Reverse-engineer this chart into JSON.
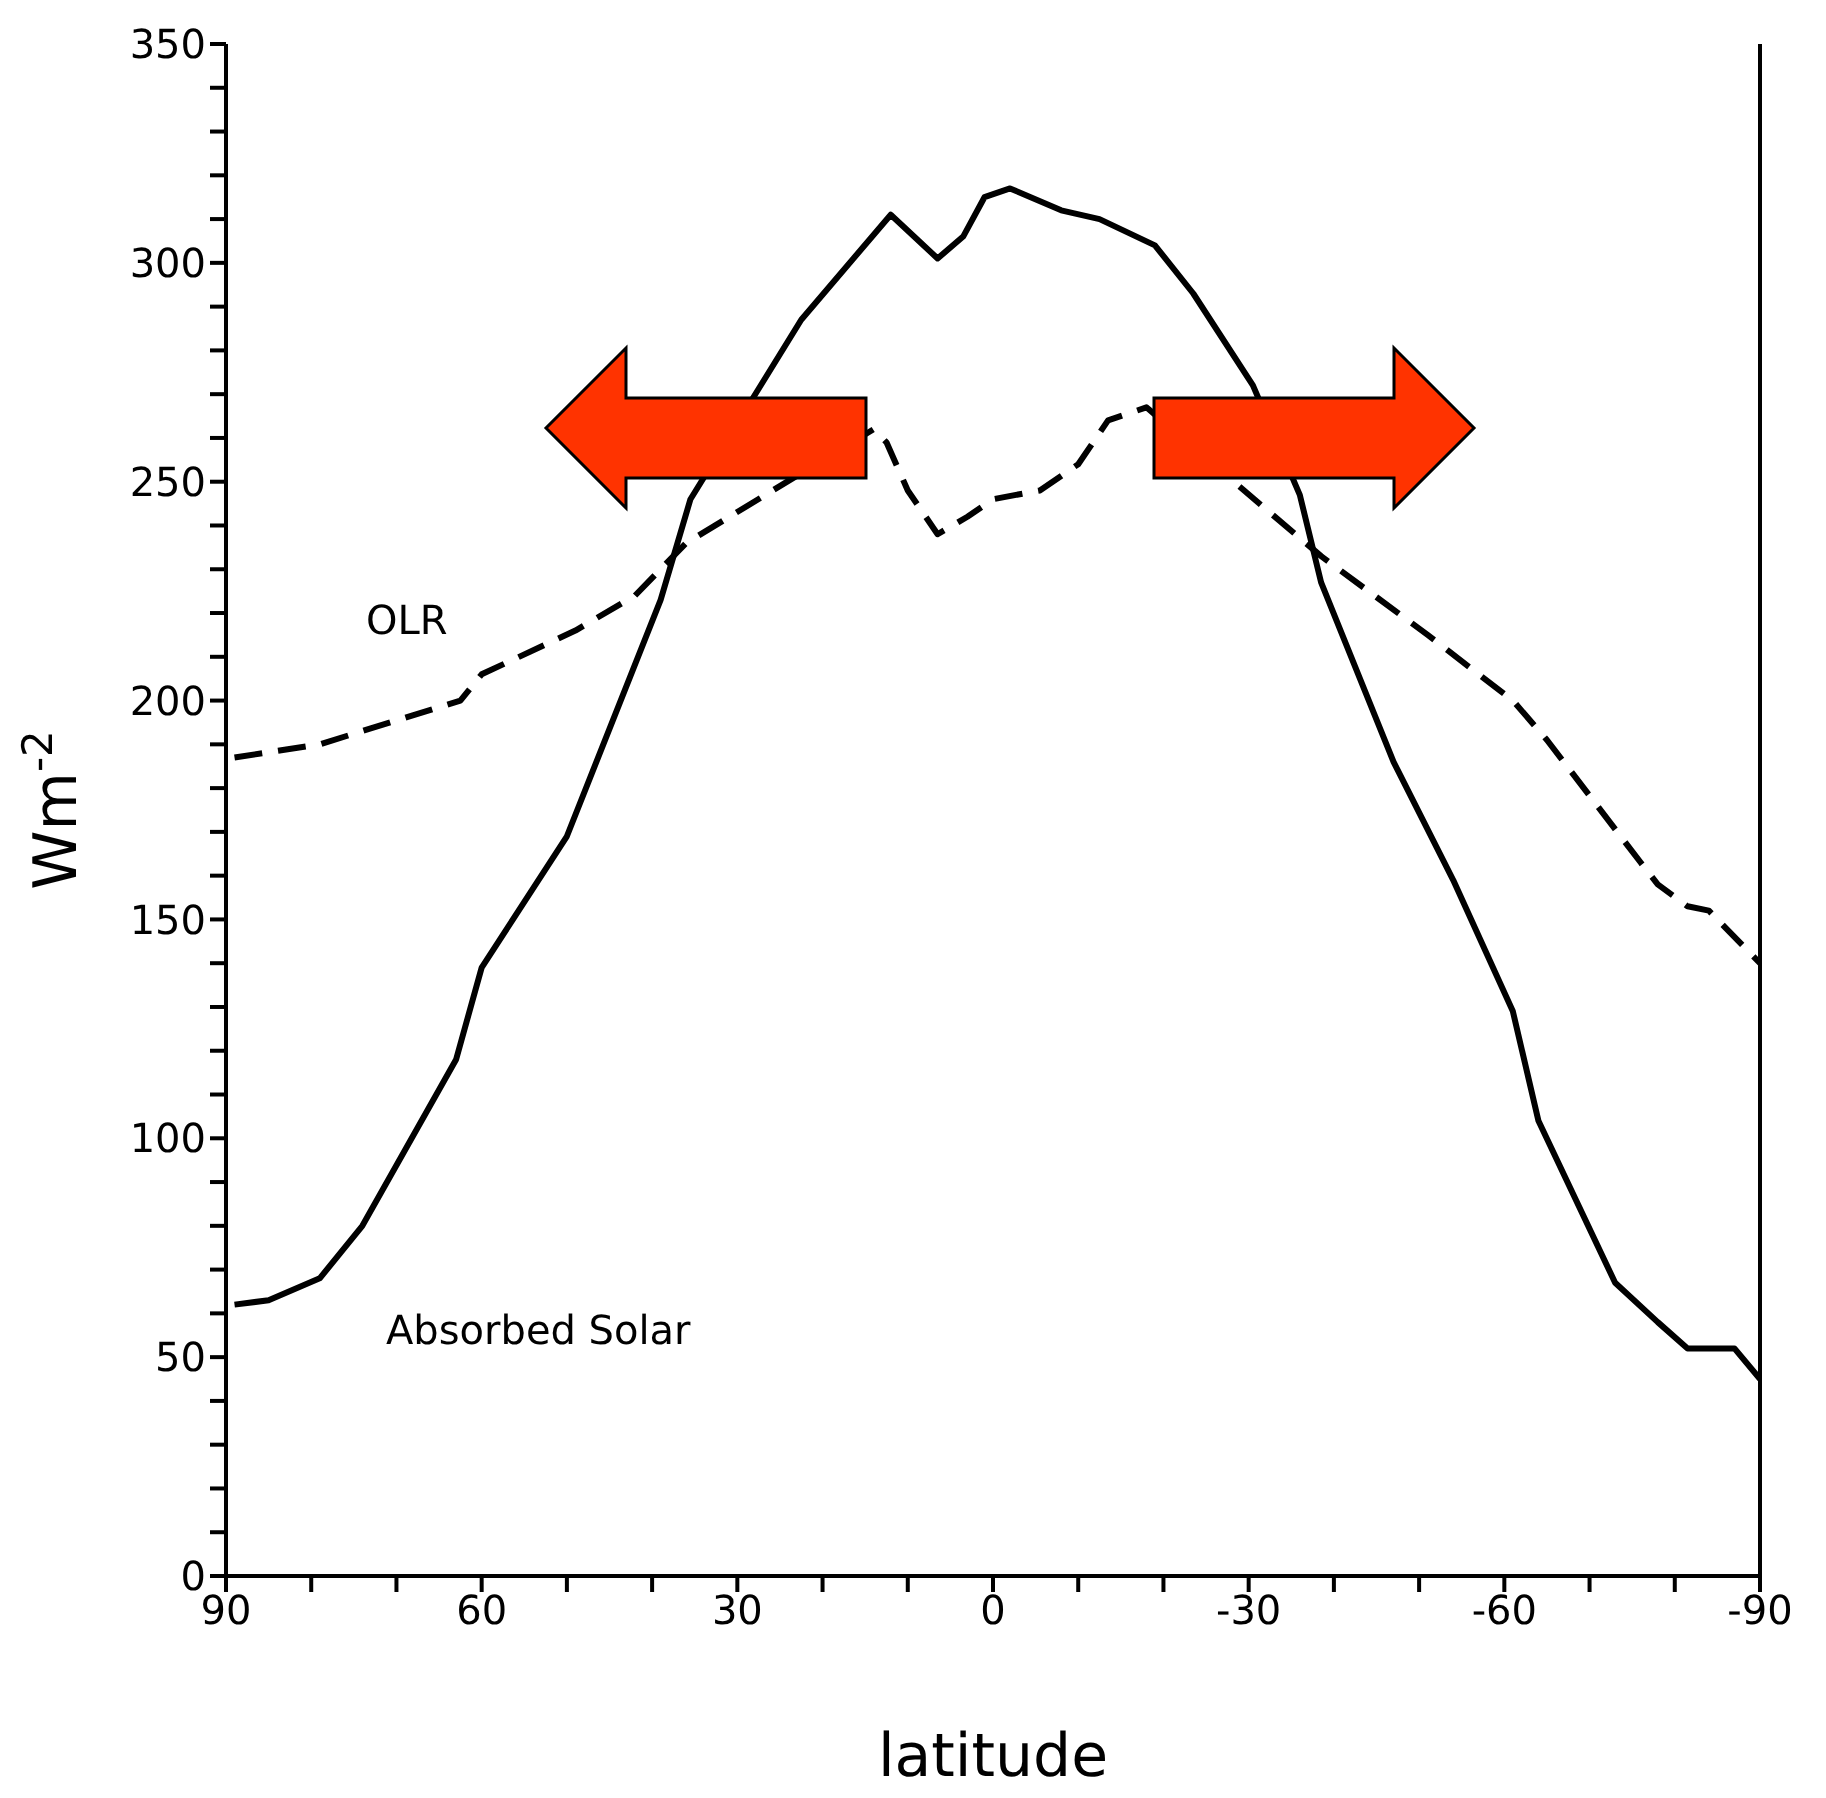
{
  "chart_data": {
    "type": "line",
    "xlabel": "latitude",
    "ylabel": "Wm$^{-2}$",
    "xlim": [
      90,
      -90
    ],
    "xticks": [
      90,
      {
        "value": 80,
        "label": null
      },
      {
        "value": 70,
        "label": null
      },
      60,
      {
        "value": 50,
        "label": null
      },
      {
        "value": 40,
        "label": null
      },
      30,
      {
        "value": 20,
        "label": null
      },
      {
        "value": 10,
        "label": null
      },
      0,
      {
        "value": -10,
        "label": null
      },
      {
        "value": -20,
        "label": null
      },
      -30,
      {
        "value": -40,
        "label": null
      },
      {
        "value": -50,
        "label": null
      },
      -60,
      {
        "value": -70,
        "label": null
      },
      {
        "value": -80,
        "label": null
      },
      -90
    ],
    "ylim": [
      0,
      350
    ],
    "yticks": [
      0,
      {
        "value": 10,
        "label": null
      },
      {
        "value": 20,
        "label": null
      },
      {
        "value": 30,
        "label": null
      },
      {
        "value": 40,
        "label": null
      },
      50,
      {
        "value": 60,
        "label": null
      },
      {
        "value": 70,
        "label": null
      },
      {
        "value": 80,
        "label": null
      },
      {
        "value": 90,
        "label": null
      },
      100,
      {
        "value": 110,
        "label": null
      },
      {
        "value": 120,
        "label": null
      },
      {
        "value": 130,
        "label": null
      },
      {
        "value": 140,
        "label": null
      },
      150,
      {
        "value": 160,
        "label": null
      },
      {
        "value": 170,
        "label": null
      },
      {
        "value": 180,
        "label": null
      },
      {
        "value": 190,
        "label": null
      },
      200,
      {
        "value": 210,
        "label": null
      },
      {
        "value": 220,
        "label": null
      },
      {
        "value": 230,
        "label": null
      },
      {
        "value": 240,
        "label": null
      },
      250,
      {
        "value": 260,
        "label": null
      },
      {
        "value": 270,
        "label": null
      },
      {
        "value": 280,
        "label": null
      },
      {
        "value": 290,
        "label": null
      },
      300,
      {
        "value": 310,
        "label": null
      },
      {
        "value": 320,
        "label": null
      },
      {
        "value": 330,
        "label": null
      },
      {
        "value": 340,
        "label": null
      },
      350
    ],
    "series": [
      {
        "name": "OLR",
        "color": "#000000",
        "line_style": "dashed",
        "x": [
          89,
          79,
          62.5,
          60,
          49,
          42,
          36,
          14,
          12.5,
          10,
          6.5,
          3,
          0,
          -5.5,
          -10,
          -13.5,
          -18,
          -38.5,
          -51,
          -61,
          -65,
          -76,
          -78,
          -81.5,
          -84,
          -90
        ],
        "values": [
          187,
          190,
          200,
          206,
          216,
          224,
          236,
          262,
          259,
          248,
          238,
          242,
          246,
          248,
          254,
          264,
          267,
          233,
          215,
          200,
          191,
          163,
          158,
          153,
          152,
          140
        ]
      },
      {
        "name": "Absorbed Solar",
        "color": "#000000",
        "line_style": "solid",
        "x": [
          89,
          85,
          79,
          74,
          63,
          60,
          50,
          39,
          35.5,
          22.5,
          12,
          6.5,
          3.5,
          1,
          -2,
          -8,
          -12.5,
          -19,
          -23.5,
          -30.5,
          -36,
          -38.5,
          -47,
          -54,
          -61,
          -64,
          -73,
          -78,
          -81.5,
          -87,
          -90
        ],
        "values": [
          62,
          63,
          68,
          80,
          118,
          139,
          169,
          223,
          246,
          287,
          311,
          301,
          306,
          315,
          317,
          312,
          310,
          304,
          293,
          272,
          247,
          227,
          186,
          159,
          129,
          104,
          67,
          58,
          52,
          52,
          45
        ]
      }
    ]
  }
}
